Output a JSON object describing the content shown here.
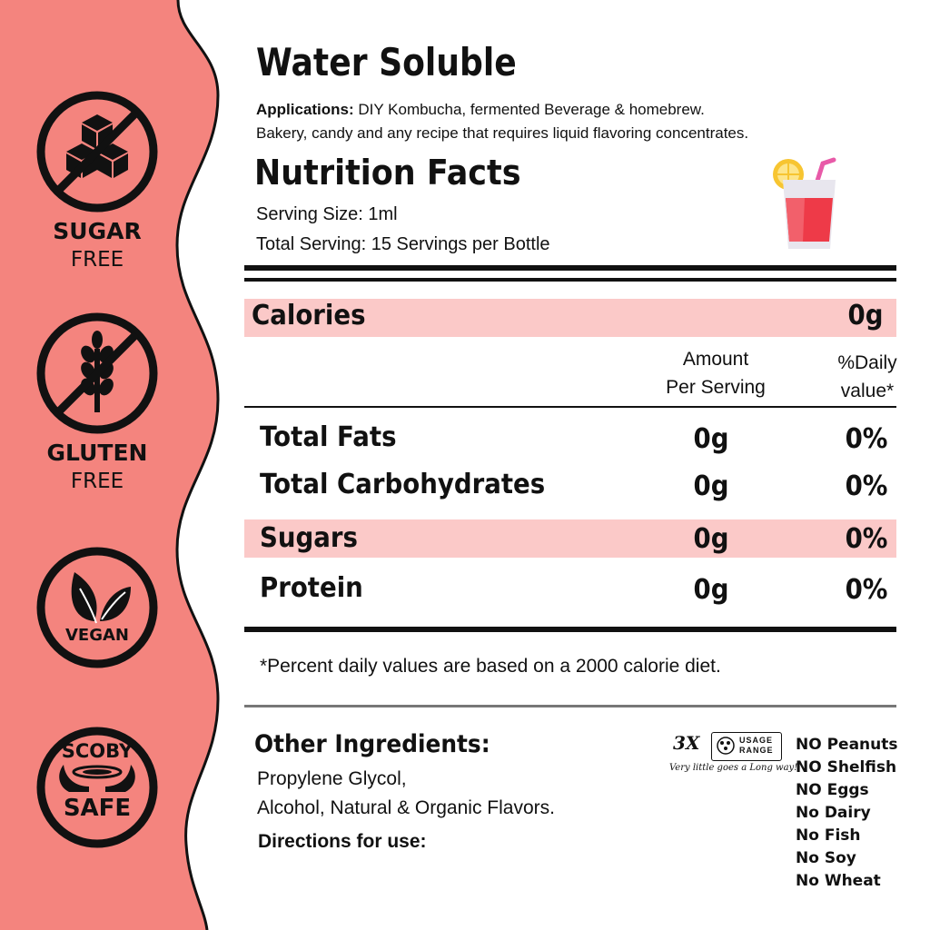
{
  "colors": {
    "sidebar": "#f4847e",
    "band": "#fbc9c8",
    "ink": "#111111"
  },
  "badges": [
    {
      "icon": "sugar-cubes-icon",
      "label": "SUGAR",
      "sub": "FREE"
    },
    {
      "icon": "wheat-icon",
      "label": "GLUTEN",
      "sub": "FREE"
    },
    {
      "icon": "leaves-icon",
      "label": "VEGAN"
    },
    {
      "icon": "scoby-hands-icon",
      "label": "SCOBY",
      "label2": "SAFE"
    }
  ],
  "header": {
    "title": "Water Soluble",
    "applications_label": "Applications:",
    "applications_line1": " DIY Kombucha, fermented Beverage & homebrew.",
    "applications_line2": "Bakery, candy and any recipe that requires liquid flavoring concentrates."
  },
  "nutrition": {
    "title": "Nutrition Facts",
    "serving_size": "Serving Size: 1ml",
    "total_serving": "Total Serving: 15 Servings per Bottle",
    "calories_label": "Calories",
    "calories_value": "0g",
    "col_amount_1": "Amount",
    "col_amount_2": "Per Serving",
    "col_daily_1": "%Daily",
    "col_daily_2": "value*",
    "rows": [
      {
        "label": "Total Fats",
        "amount": "0g",
        "daily": "0%"
      },
      {
        "label": "Total Carbohydrates",
        "amount": "0g",
        "daily": "0%"
      },
      {
        "label": "Sugars",
        "amount": "0g",
        "daily": "0%"
      },
      {
        "label": "Protein",
        "amount": "0g",
        "daily": "0%"
      }
    ],
    "footnote": "*Percent daily values are based on a 2000 calorie diet."
  },
  "ingredients": {
    "title": "Other Ingredients:",
    "line1": "Propylene Glycol,",
    "line2": "Alcohol, Natural & Organic Flavors.",
    "directions": "Directions for use:"
  },
  "usage": {
    "multiplier": "3X",
    "line1": "USAGE",
    "line2": "RANGE",
    "tagline": "Very little goes a Long way!"
  },
  "allergens": [
    "NO Peanuts",
    "NO Shelfish",
    "NO Eggs",
    "No Dairy",
    "No Fish",
    "No Soy",
    "No Wheat"
  ],
  "drink_icon": "cocktail-glass-icon"
}
